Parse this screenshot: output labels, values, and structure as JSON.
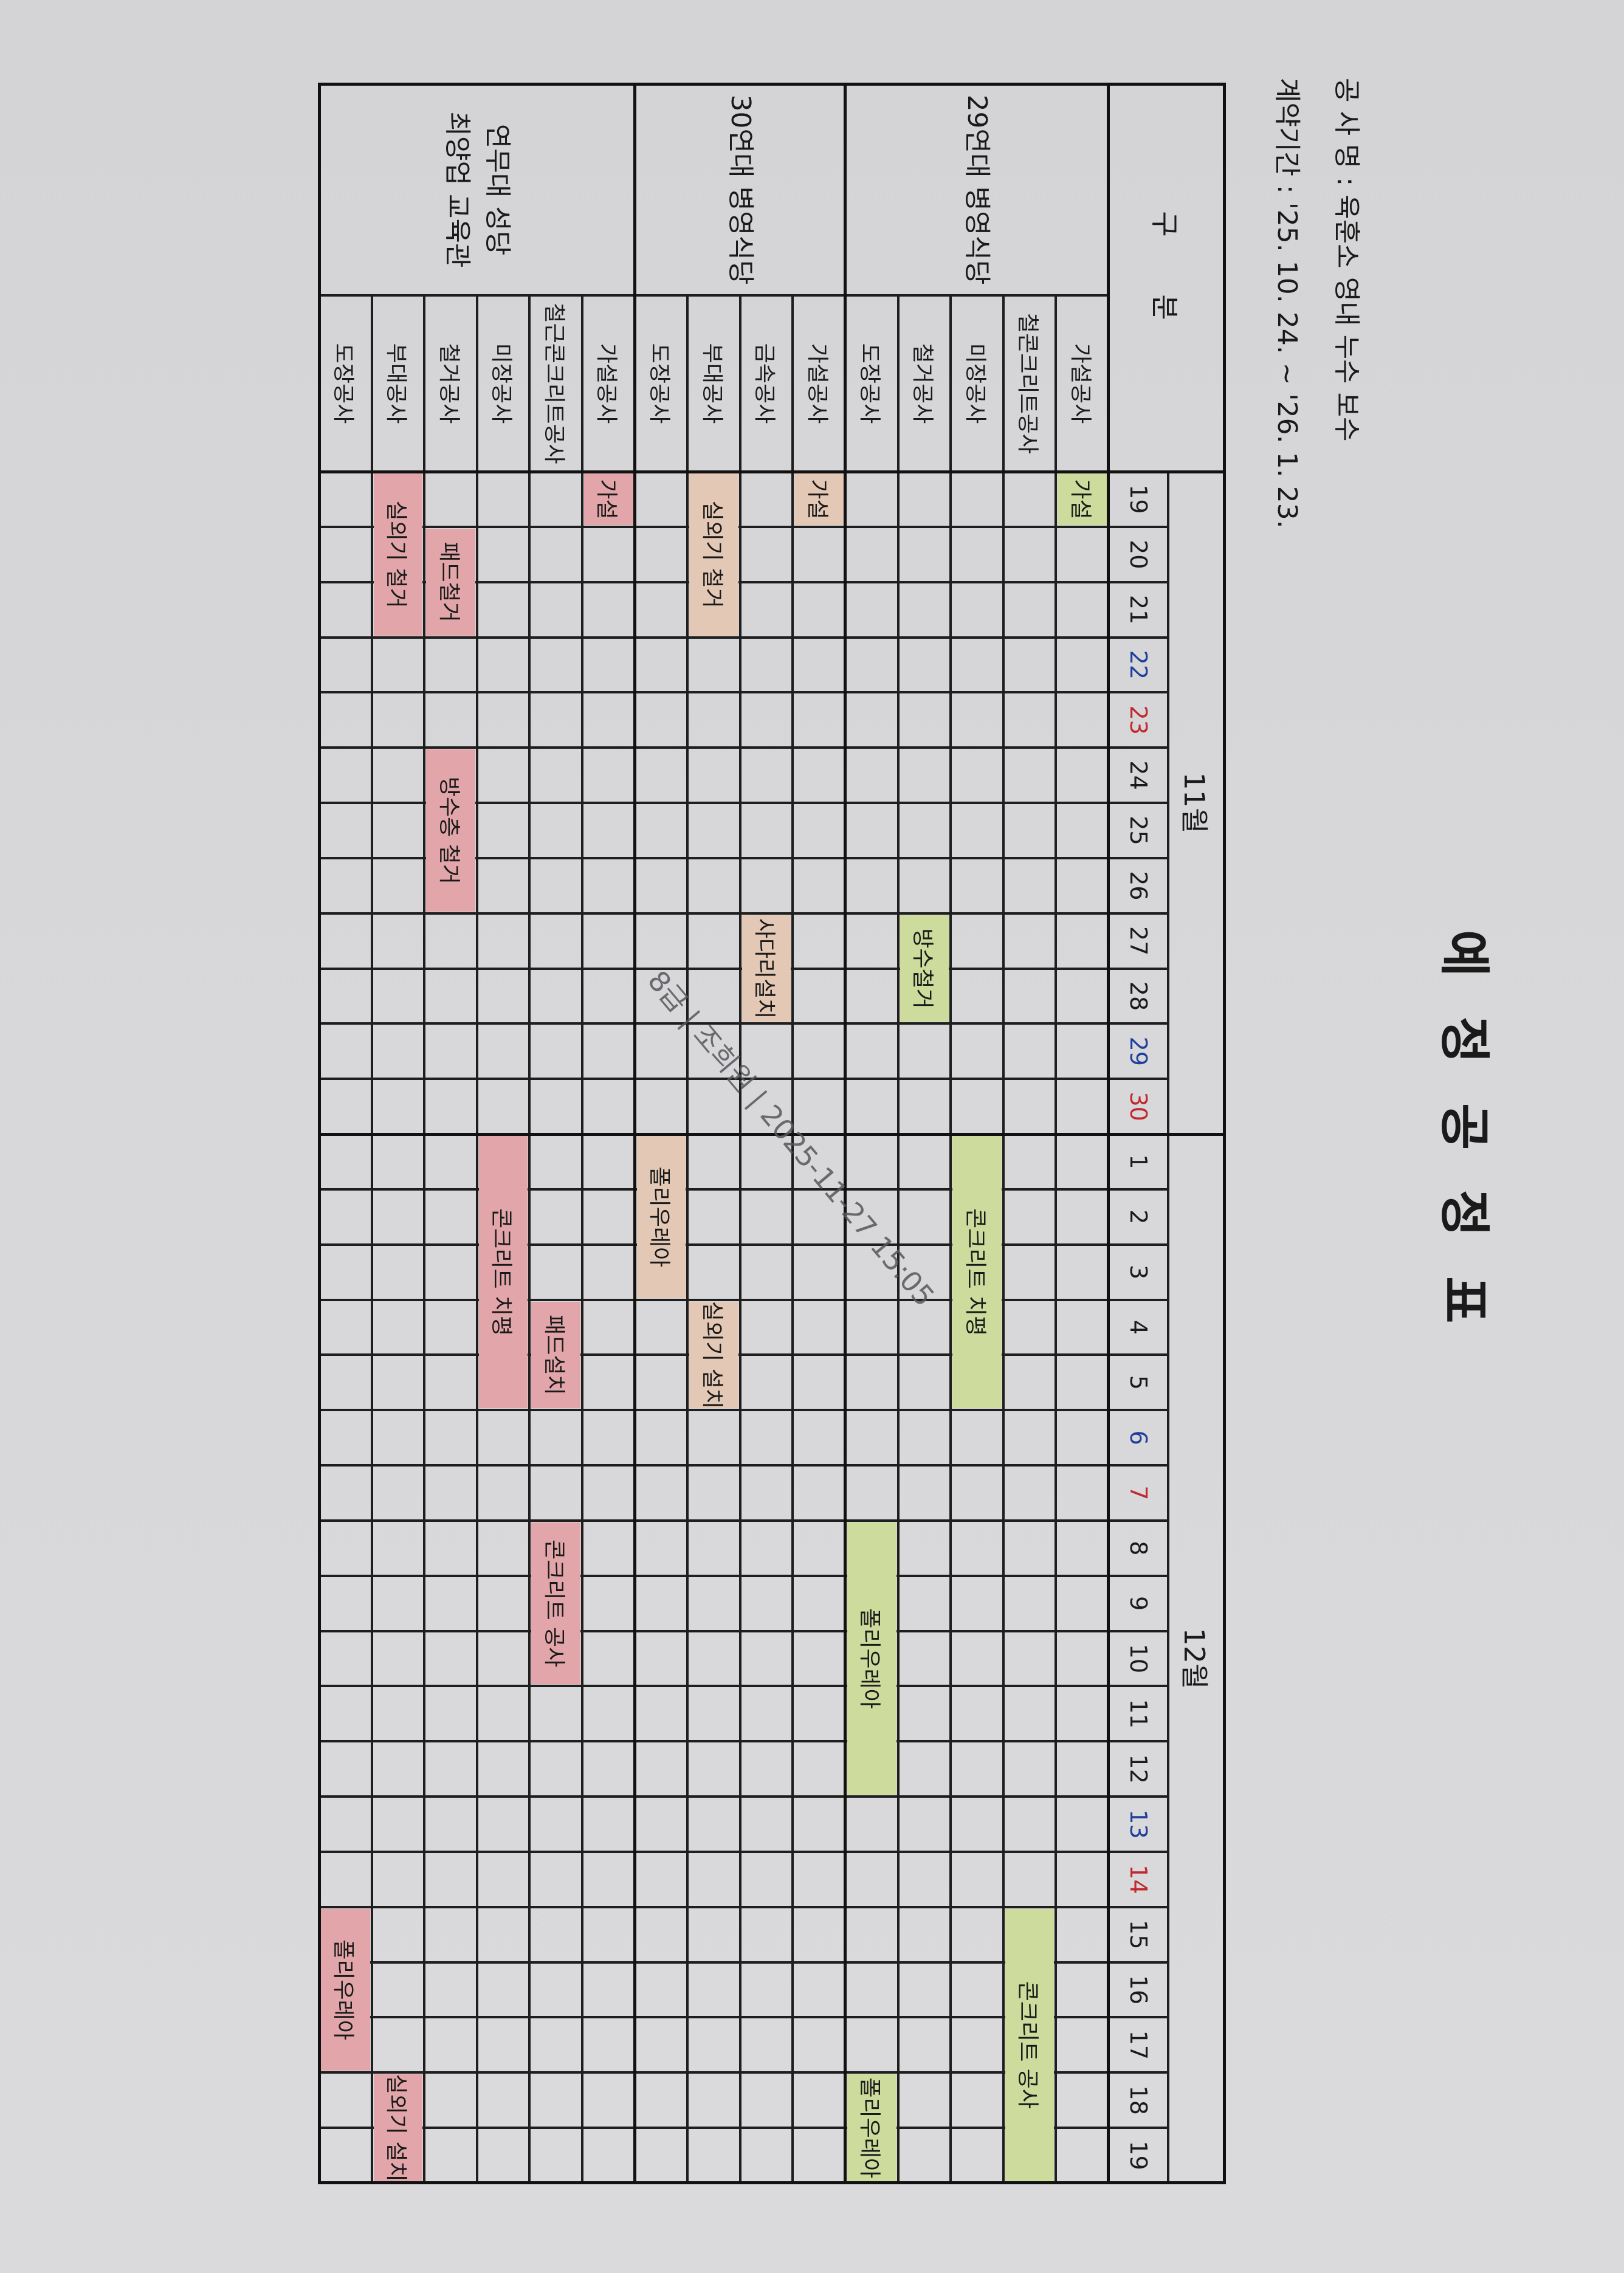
{
  "document": {
    "title": "예 정 공 정 표",
    "project_name": "공 사 명 : 육훈소 영내 누수 보수",
    "contract_period": "계약기간 : '25. 10. 24. ~ '26. 1. 23.",
    "stamp": "8급 | 조희원 | 2025-11-27 15:05"
  },
  "table": {
    "category_header": "구 분",
    "months": [
      {
        "label": "11월",
        "month": 11,
        "days": [
          19,
          20,
          21,
          22,
          23,
          24,
          25,
          26,
          27,
          28,
          29,
          30
        ]
      },
      {
        "label": "12월",
        "month": 12,
        "days": [
          1,
          2,
          3,
          4,
          5,
          6,
          7,
          8,
          9,
          10,
          11,
          12,
          13,
          14,
          15,
          16,
          17,
          18,
          19
        ]
      }
    ],
    "saturdays": [
      "11/22",
      "11/29",
      "12/6",
      "12/13"
    ],
    "sundays": [
      "11/23",
      "11/30",
      "12/7",
      "12/14"
    ],
    "groups": [
      {
        "name": "29연대 병영식당",
        "color": "#cddb9c",
        "items": [
          {
            "label": "가설공사",
            "tasks": [
              {
                "label": "가설",
                "start": "11/19",
                "end": "11/19"
              }
            ]
          },
          {
            "label": "철콘크리트공사",
            "tasks": [
              {
                "label": "콘크리트 공사",
                "start": "12/15",
                "end": "12/19"
              }
            ]
          },
          {
            "label": "미장공사",
            "tasks": [
              {
                "label": "콘크리트 치평",
                "start": "12/1",
                "end": "12/5"
              }
            ]
          },
          {
            "label": "철거공사",
            "tasks": [
              {
                "label": "방수철거",
                "start": "11/27",
                "end": "11/28"
              }
            ]
          },
          {
            "label": "도장공사",
            "tasks": [
              {
                "label": "폴리우레아",
                "start": "12/8",
                "end": "12/12"
              },
              {
                "label": "폴리우레아",
                "start": "12/18",
                "end": "12/19"
              }
            ]
          }
        ]
      },
      {
        "name": "30연대 병영식당",
        "color": "#e4c8b6",
        "items": [
          {
            "label": "가설공사",
            "tasks": [
              {
                "label": "가설",
                "start": "11/19",
                "end": "11/19"
              }
            ]
          },
          {
            "label": "금속공사",
            "tasks": [
              {
                "label": "사다리설치",
                "start": "11/27",
                "end": "11/28"
              }
            ]
          },
          {
            "label": "부대공사",
            "tasks": [
              {
                "label": "실외기 철거",
                "start": "11/19",
                "end": "11/21"
              },
              {
                "label": "실외기 설치",
                "start": "12/4",
                "end": "12/5"
              }
            ]
          },
          {
            "label": "도장공사",
            "tasks": [
              {
                "label": "폴리우레아",
                "start": "12/1",
                "end": "12/3"
              }
            ]
          }
        ]
      },
      {
        "name": "연무대 성당\n최양업 교육관",
        "color": "#e2a6aa",
        "items": [
          {
            "label": "가설공사",
            "tasks": [
              {
                "label": "가설",
                "start": "11/19",
                "end": "11/19"
              }
            ]
          },
          {
            "label": "철근콘크리트공사",
            "tasks": [
              {
                "label": "패드설치",
                "start": "12/4",
                "end": "12/5"
              },
              {
                "label": "콘크리트 공사",
                "start": "12/8",
                "end": "12/10"
              }
            ]
          },
          {
            "label": "미장공사",
            "tasks": [
              {
                "label": "콘크리트 치평",
                "start": "12/1",
                "end": "12/5"
              }
            ]
          },
          {
            "label": "철거공사",
            "tasks": [
              {
                "label": "패드철거",
                "start": "11/20",
                "end": "11/21"
              },
              {
                "label": "방수층 철거",
                "start": "11/24",
                "end": "11/26"
              }
            ]
          },
          {
            "label": "부대공사",
            "tasks": [
              {
                "label": "실외기 철거",
                "start": "11/19",
                "end": "11/21"
              },
              {
                "label": "실외기 설치",
                "start": "12/18",
                "end": "12/19"
              }
            ]
          },
          {
            "label": "도장공사",
            "tasks": [
              {
                "label": "폴리우레아",
                "start": "12/15",
                "end": "12/17"
              }
            ]
          }
        ]
      }
    ]
  },
  "colors": {
    "saturday": "#1f3f9a",
    "sunday": "#c0282d",
    "grid": "#1e1e1e"
  }
}
